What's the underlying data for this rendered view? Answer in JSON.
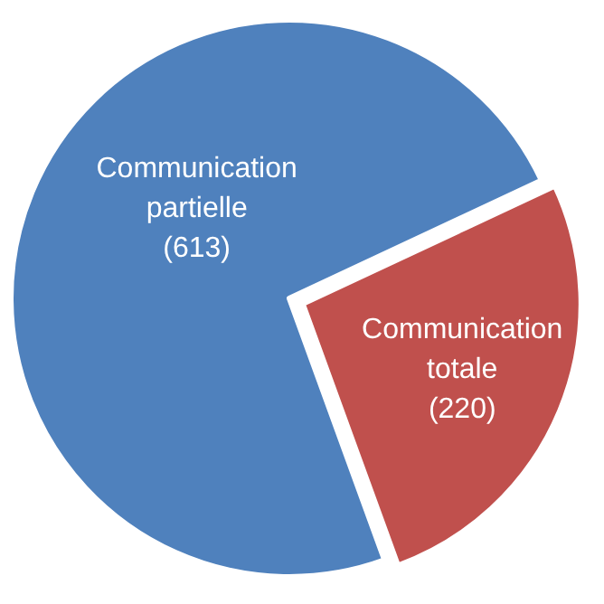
{
  "chart_data": {
    "type": "pie",
    "categories": [
      "Communication partielle",
      "Communication totale"
    ],
    "values": [
      613,
      220
    ],
    "colors": [
      "#4f81bd",
      "#c0504d"
    ],
    "value_labels": [
      "(613)",
      "(220)"
    ]
  }
}
